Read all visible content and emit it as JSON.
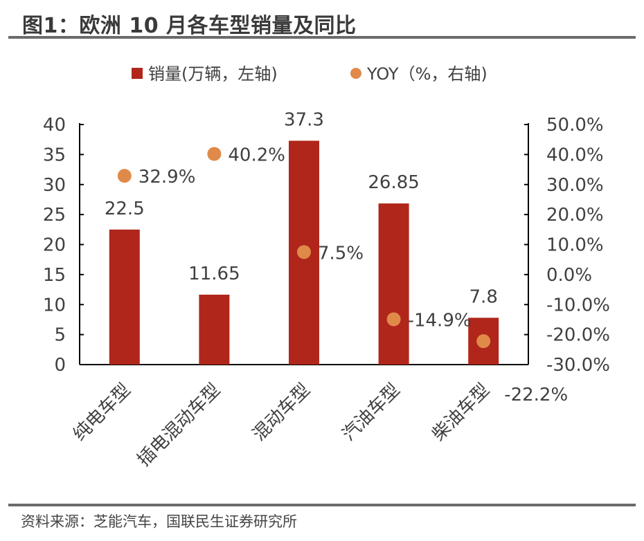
{
  "header": {
    "title": "图1：欧洲 10 月各车型销量及同比"
  },
  "footer": {
    "source": "资料来源：芝能汽车，国联民生证券研究所"
  },
  "colors": {
    "bar": "#b0261b",
    "dot": "#e08a4a",
    "axis": "#000000",
    "rule": "#6b6b6b"
  },
  "chart_data": {
    "type": "bar",
    "title": "",
    "categories": [
      "纯电车型",
      "插电混动车型",
      "混动车型",
      "汽油车型",
      "柴油车型"
    ],
    "series": [
      {
        "name": "销量(万辆，左轴)",
        "kind": "bar",
        "axis": "left",
        "values": [
          22.5,
          11.65,
          37.3,
          26.85,
          7.8
        ],
        "labels": [
          "22.5",
          "11.65",
          "37.3",
          "26.85",
          "7.8"
        ]
      },
      {
        "name": "YOY（%，右轴)",
        "kind": "scatter",
        "axis": "right",
        "values": [
          32.9,
          40.2,
          7.5,
          -14.9,
          -22.2
        ],
        "labels": [
          "32.9%",
          "40.2%",
          "7.5%",
          "-14.9%",
          "-22.2%"
        ]
      }
    ],
    "left_axis": {
      "min": 0,
      "max": 40,
      "ticks": [
        0,
        5,
        10,
        15,
        20,
        25,
        30,
        35,
        40
      ],
      "tick_labels": [
        "0",
        "5",
        "10",
        "15",
        "20",
        "25",
        "30",
        "35",
        "40"
      ]
    },
    "right_axis": {
      "min": -30,
      "max": 50,
      "ticks": [
        -30,
        -20,
        -10,
        0,
        10,
        20,
        30,
        40,
        50
      ],
      "tick_labels": [
        "-30.0%",
        "-20.0%",
        "-10.0%",
        "0.0%",
        "10.0%",
        "20.0%",
        "30.0%",
        "40.0%",
        "50.0%"
      ]
    },
    "legend": {
      "position": "top",
      "entries": [
        "销量(万辆，左轴)",
        "YOY（%，右轴)"
      ]
    },
    "grid": false
  }
}
